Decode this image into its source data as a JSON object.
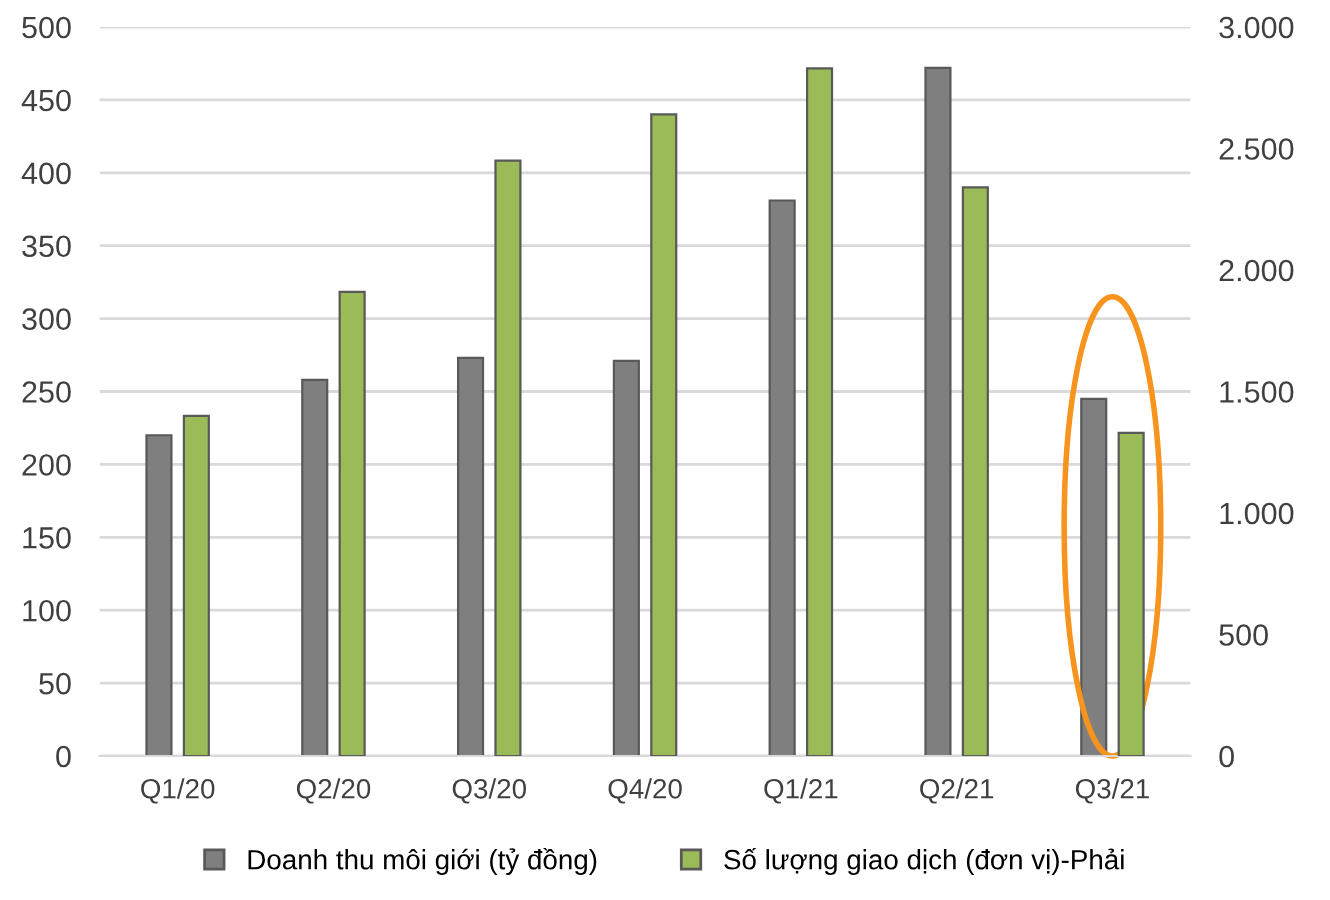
{
  "chart_data": {
    "type": "bar",
    "categories": [
      "Q1/20",
      "Q2/20",
      "Q3/20",
      "Q4/20",
      "Q1/21",
      "Q2/21",
      "Q3/21"
    ],
    "series": [
      {
        "name": "Doanh thu môi giới (tỷ đồng)",
        "color": "#7f7f7f",
        "values": [
          220,
          258,
          273,
          271,
          381,
          472,
          245
        ]
      },
      {
        "name": "Số lượng giao dịch (đơn vị)-Phải",
        "color": "#9bbb59",
        "axis": "y2",
        "values": [
          1400,
          1910,
          2450,
          2640,
          2830,
          2340,
          1330
        ]
      }
    ],
    "ylim": [
      0,
      500
    ],
    "yticks": [
      0,
      50,
      100,
      150,
      200,
      250,
      300,
      350,
      400,
      450,
      500
    ],
    "y2lim": [
      0,
      3000
    ],
    "y2ticks": [
      0,
      500,
      {
        "value": 1000,
        "label": "1.000"
      },
      {
        "value": 1500,
        "label": "1.500"
      },
      {
        "value": 2000,
        "label": "2.000"
      },
      {
        "value": 2500,
        "label": "2.500"
      },
      {
        "value": 3000,
        "label": "3.000"
      }
    ],
    "grid": "y",
    "legend": "bottom"
  }
}
